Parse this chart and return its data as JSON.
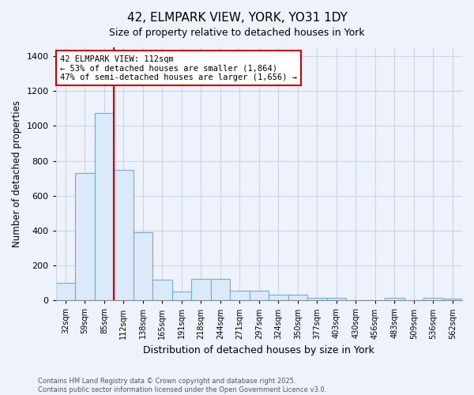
{
  "title": "42, ELMPARK VIEW, YORK, YO31 1DY",
  "subtitle": "Size of property relative to detached houses in York",
  "xlabel": "Distribution of detached houses by size in York",
  "ylabel": "Number of detached properties",
  "bar_labels": [
    "32sqm",
    "59sqm",
    "85sqm",
    "112sqm",
    "138sqm",
    "165sqm",
    "191sqm",
    "218sqm",
    "244sqm",
    "271sqm",
    "297sqm",
    "324sqm",
    "350sqm",
    "377sqm",
    "403sqm",
    "430sqm",
    "456sqm",
    "483sqm",
    "509sqm",
    "536sqm",
    "562sqm"
  ],
  "bar_values": [
    100,
    730,
    1075,
    750,
    390,
    120,
    50,
    125,
    125,
    55,
    55,
    35,
    35,
    15,
    15,
    0,
    0,
    15,
    0,
    15,
    10
  ],
  "bar_color": "#dce9f8",
  "bar_edge_color": "#6baed6",
  "red_line_index": 3,
  "annotation_title": "42 ELMPARK VIEW: 112sqm",
  "annotation_line1": "← 53% of detached houses are smaller (1,864)",
  "annotation_line2": "47% of semi-detached houses are larger (1,656) →",
  "annotation_box_color": "#ffffff",
  "annotation_box_edge": "#cc0000",
  "red_line_color": "#cc0000",
  "ylim": [
    0,
    1450
  ],
  "yticks": [
    0,
    200,
    400,
    600,
    800,
    1000,
    1200,
    1400
  ],
  "footer_line1": "Contains HM Land Registry data © Crown copyright and database right 2025.",
  "footer_line2": "Contains public sector information licensed under the Open Government Licence v3.0.",
  "background_color": "#eef2fb",
  "grid_color": "#c8d4e8",
  "title_fontsize": 11,
  "subtitle_fontsize": 9
}
